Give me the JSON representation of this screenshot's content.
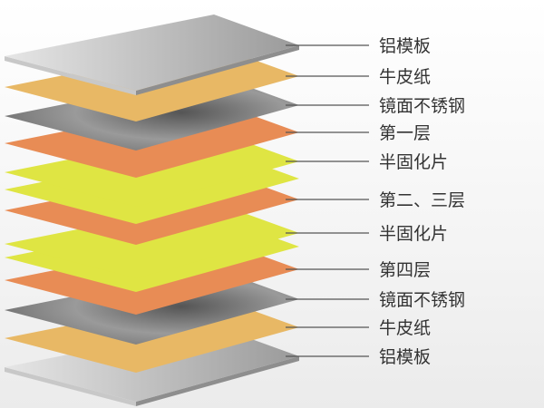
{
  "layers": [
    {
      "label": "铝模板",
      "color": "#b9b9b9",
      "material": "aluminum"
    },
    {
      "label": "牛皮纸",
      "color": "#e8b865",
      "material": "kraft"
    },
    {
      "label": "镜面不锈钢",
      "color": "#8a8a8a",
      "material": "steel"
    },
    {
      "label": "第一层",
      "color": "#e88c55",
      "material": "copper"
    },
    {
      "label": "半固化片",
      "color": "#dfe543",
      "material": "prepreg"
    },
    {
      "label": "第二、三层",
      "color": "#e88c55",
      "material": "copper"
    },
    {
      "label": "半固化片",
      "color": "#dfe543",
      "material": "prepreg"
    },
    {
      "label": "第四层",
      "color": "#e88c55",
      "material": "copper"
    },
    {
      "label": "镜面不锈钢",
      "color": "#8a8a8a",
      "material": "steel"
    },
    {
      "label": "牛皮纸",
      "color": "#e8b865",
      "material": "kraft"
    },
    {
      "label": "铝模板",
      "color": "#b9b9b9",
      "material": "aluminum"
    }
  ]
}
